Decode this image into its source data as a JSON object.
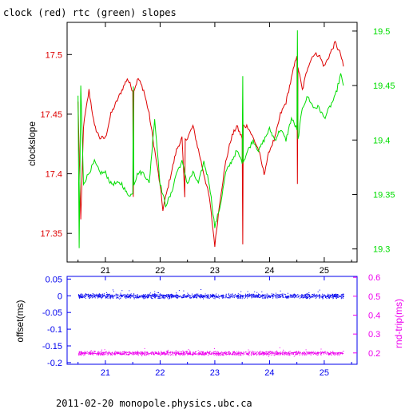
{
  "title": "clock (red) rtc (green) slopes",
  "footer": "2011-02-20  monopole.physics.ubc.ca",
  "colors": {
    "clock": "#dd0000",
    "rtc": "#00dd00",
    "offset": "#0000ee",
    "rndtrip": "#ee00ee",
    "axis": "#000000"
  },
  "chart_data": [
    {
      "type": "line",
      "title": "clock (red) rtc (green) slopes",
      "xlabel": "",
      "ylabel": "clockslope",
      "xlim": [
        20.3,
        25.6
      ],
      "ylim": [
        17.326,
        17.527
      ],
      "y2lim": [
        19.288,
        19.508
      ],
      "xticks": [
        "21",
        "22",
        "23",
        "24",
        "25"
      ],
      "yticks": [
        "17.35",
        "17.4",
        "17.45",
        "17.5"
      ],
      "y2ticks": [
        "19.3",
        "19.35",
        "19.4",
        "19.45",
        "19.5"
      ],
      "grid": false,
      "legend": "none",
      "series": [
        {
          "axis": "left",
          "x": [
            20.5,
            20.55,
            20.6,
            20.7,
            20.8,
            20.9,
            21.0,
            21.1,
            21.2,
            21.3,
            21.4,
            21.5,
            21.51,
            21.52,
            21.6,
            21.7,
            21.8,
            21.9,
            22.0,
            22.05,
            22.1,
            22.2,
            22.3,
            22.4,
            22.45,
            22.46,
            22.5,
            22.6,
            22.7,
            22.8,
            22.9,
            22.95,
            23.0,
            23.1,
            23.2,
            23.3,
            23.4,
            23.5,
            23.51,
            23.52,
            23.6,
            23.7,
            23.8,
            23.9,
            24.0,
            24.1,
            24.2,
            24.3,
            24.4,
            24.5,
            24.51,
            24.52,
            24.6,
            24.7,
            24.8,
            24.9,
            25.0,
            25.1,
            25.2,
            25.3,
            25.35
          ],
          "y": [
            17.46,
            17.36,
            17.44,
            17.47,
            17.44,
            17.43,
            17.43,
            17.45,
            17.46,
            17.47,
            17.48,
            17.47,
            17.38,
            17.47,
            17.48,
            17.47,
            17.45,
            17.42,
            17.39,
            17.37,
            17.38,
            17.4,
            17.42,
            17.43,
            17.38,
            17.43,
            17.43,
            17.44,
            17.42,
            17.4,
            17.38,
            17.36,
            17.34,
            17.38,
            17.41,
            17.43,
            17.44,
            17.43,
            17.34,
            17.44,
            17.44,
            17.43,
            17.42,
            17.4,
            17.42,
            17.43,
            17.45,
            17.46,
            17.48,
            17.5,
            17.39,
            17.49,
            17.47,
            17.49,
            17.5,
            17.5,
            17.49,
            17.5,
            17.51,
            17.5,
            17.49
          ]
        },
        {
          "axis": "right",
          "x": [
            20.5,
            20.52,
            20.55,
            20.6,
            20.7,
            20.8,
            20.9,
            21.0,
            21.1,
            21.2,
            21.3,
            21.4,
            21.5,
            21.51,
            21.52,
            21.6,
            21.7,
            21.8,
            21.9,
            22.0,
            22.1,
            22.2,
            22.3,
            22.4,
            22.5,
            22.6,
            22.7,
            22.8,
            22.9,
            22.95,
            23.0,
            23.1,
            23.2,
            23.3,
            23.4,
            23.5,
            23.51,
            23.52,
            23.6,
            23.7,
            23.8,
            23.9,
            24.0,
            24.1,
            24.2,
            24.3,
            24.4,
            24.5,
            24.51,
            24.52,
            24.6,
            24.7,
            24.8,
            24.9,
            25.0,
            25.1,
            25.2,
            25.3,
            25.35
          ],
          "y": [
            19.44,
            19.3,
            19.45,
            19.36,
            19.37,
            19.38,
            19.37,
            19.37,
            19.36,
            19.36,
            19.36,
            19.35,
            19.35,
            19.45,
            19.36,
            19.37,
            19.37,
            19.36,
            19.42,
            19.36,
            19.34,
            19.35,
            19.37,
            19.38,
            19.36,
            19.37,
            19.36,
            19.38,
            19.36,
            19.34,
            19.32,
            19.34,
            19.37,
            19.38,
            19.39,
            19.38,
            19.46,
            19.38,
            19.39,
            19.4,
            19.39,
            19.4,
            19.41,
            19.4,
            19.41,
            19.4,
            19.42,
            19.41,
            19.5,
            19.4,
            19.43,
            19.44,
            19.43,
            19.43,
            19.42,
            19.43,
            19.44,
            19.46,
            19.45
          ]
        }
      ]
    },
    {
      "type": "scatter",
      "xlabel": "",
      "ylabel": "offset(ms)",
      "y2label": "rnd-trip(ms)",
      "xlim": [
        20.3,
        25.6
      ],
      "ylim": [
        -0.205,
        0.058
      ],
      "y2lim": [
        0.14,
        0.605
      ],
      "xticks": [
        "21",
        "22",
        "23",
        "24",
        "25"
      ],
      "yticks": [
        "0.05",
        "0",
        "-0.05",
        "-0.1",
        "-0.15",
        "-0.2"
      ],
      "y2ticks": [
        "0.2",
        "0.3",
        "0.4",
        "0.5",
        "0.6"
      ],
      "grid": false,
      "legend": "none",
      "series": [
        {
          "axis": "left",
          "x_range": [
            20.5,
            25.35
          ],
          "y_center": 0,
          "y_spread": 0.008
        },
        {
          "axis": "right",
          "x_range": [
            20.5,
            25.35
          ],
          "y_center": 0.2,
          "y_spread": 0.012
        }
      ]
    }
  ]
}
